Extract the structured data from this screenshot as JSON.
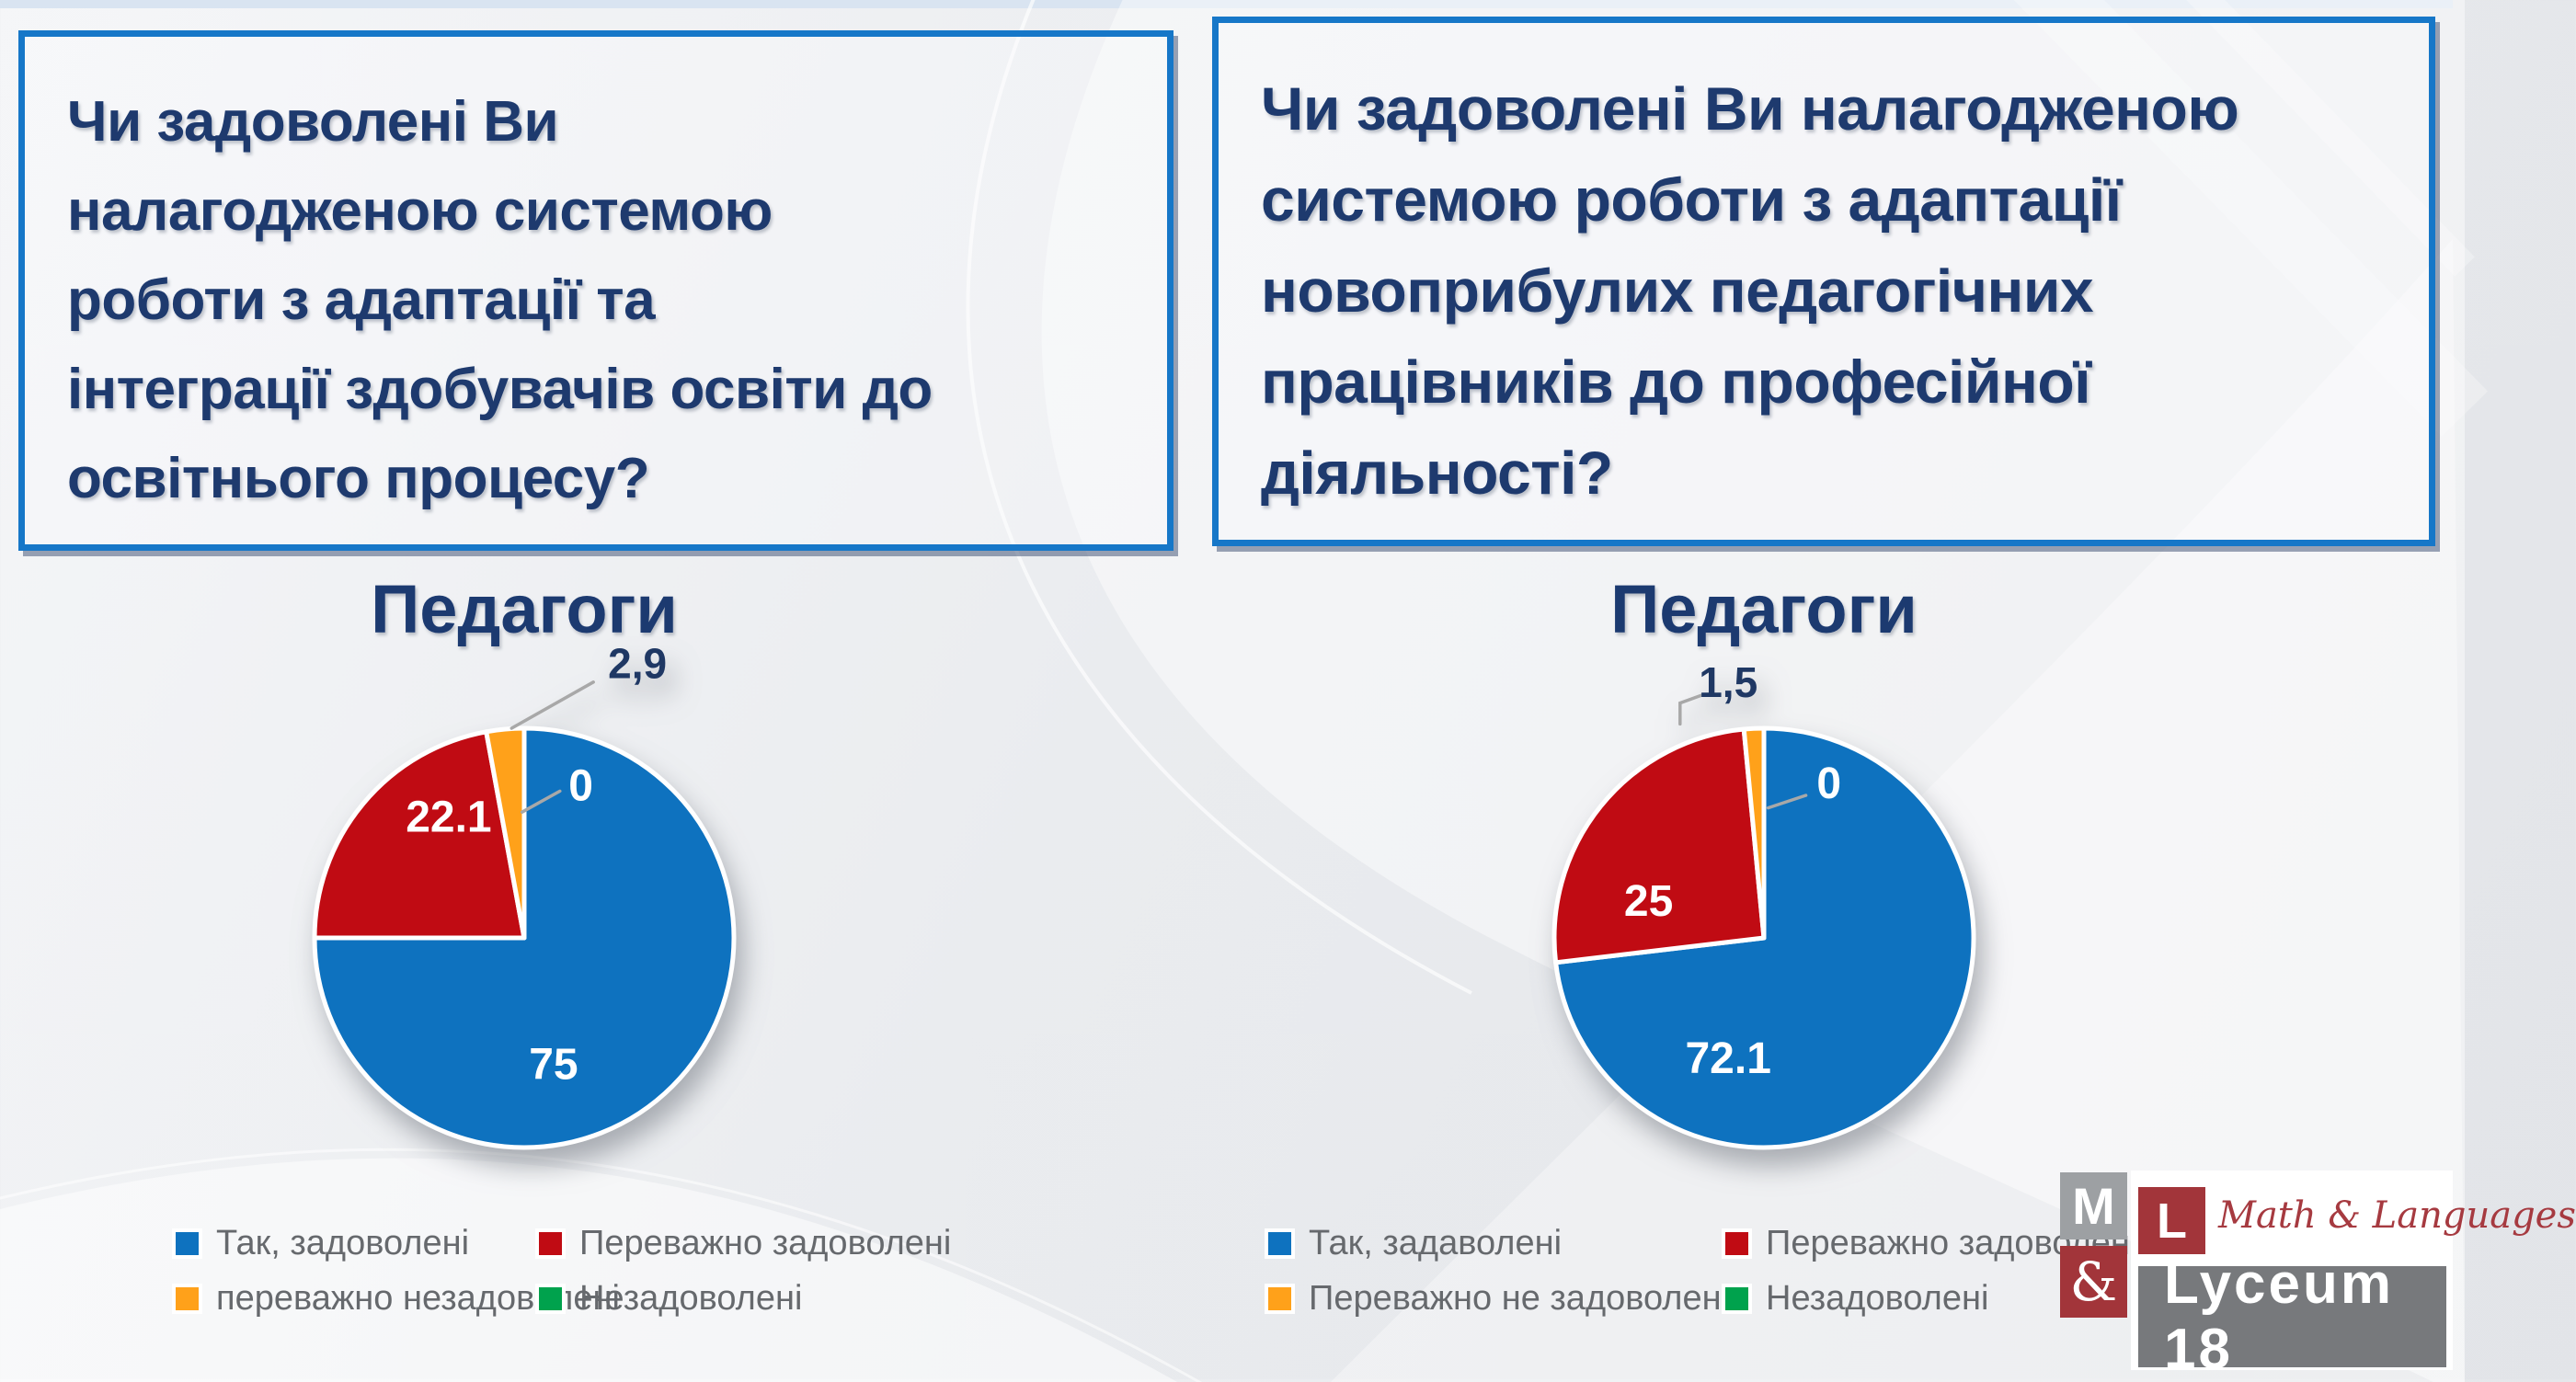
{
  "questions": [
    {
      "text": "Чи задоволені Ви\nналагодженою системою\nроботи з адаптації  та\nінтеграції здобувачів освіти до\nосвітнього процесу?"
    },
    {
      "text": "Чи задоволені Ви налагодженою\nсистемою роботи з адаптації\nновоприбулих педагогічних\nпрацівників до професійної\nдіяльності?"
    }
  ],
  "colors": {
    "box_border": "#1677c8",
    "heading_navy": "#1e3a6e",
    "legend_text": "#66696d",
    "leader_line": "#a8a8a8",
    "series_blue": "#0e72bf",
    "series_red": "#c00b13",
    "series_orange": "#ffa11a",
    "series_green": "#00a24d"
  },
  "chart_data": [
    {
      "type": "pie",
      "title": "Педагоги",
      "legend_position": "bottom",
      "slices": [
        {
          "label": "Так, задоволені",
          "value": 75,
          "display": "75",
          "color": "#0e72bf",
          "text_color": "#ffffff",
          "pos": [
            0.14,
            0.6
          ]
        },
        {
          "label": "Переважно задоволені",
          "value": 22.1,
          "display": "22.1",
          "color": "#c00b13",
          "text_color": "#ffffff",
          "pos": [
            -0.36,
            -0.58
          ]
        },
        {
          "label": "переважно незадоволені",
          "value": 2.9,
          "display": "2,9",
          "color": "#ffa11a",
          "text_color": "#1f3864",
          "pos": [
            0.54,
            -1.31
          ],
          "leader": [
            [
              -0.06,
              -1.0
            ],
            [
              0.33,
              -1.22
            ]
          ]
        },
        {
          "label": "Незадоволені",
          "value": 0,
          "display": "0",
          "color": "#00a24d",
          "text_color": "#ffffff",
          "pos": [
            0.27,
            -0.73
          ],
          "leader": [
            [
              -0.01,
              -0.6
            ],
            [
              0.17,
              -0.7
            ]
          ]
        }
      ]
    },
    {
      "type": "pie",
      "title": "Педагоги",
      "legend_position": "bottom",
      "slices": [
        {
          "label": "Так, задаволені",
          "value": 72.1,
          "display": "72.1",
          "color": "#0e72bf",
          "text_color": "#ffffff",
          "pos": [
            -0.17,
            0.57
          ]
        },
        {
          "label": "Переважно задоволені",
          "value": 25,
          "display": "25",
          "color": "#c00b13",
          "text_color": "#ffffff",
          "pos": [
            -0.55,
            -0.18
          ]
        },
        {
          "label": "Переважно не задоволені",
          "value": 1.5,
          "display": "1,5",
          "color": "#ffa11a",
          "text_color": "#1f3864",
          "pos": [
            -0.17,
            -1.22
          ],
          "leader": [
            [
              -0.4,
              -1.02
            ],
            [
              -0.4,
              -1.12
            ],
            [
              -0.29,
              -1.16
            ]
          ]
        },
        {
          "label": "Незадоволені",
          "value": 0,
          "display": "0",
          "color": "#00a24d",
          "text_color": "#ffffff",
          "pos": [
            0.31,
            -0.74
          ],
          "leader": [
            [
              0.02,
              -0.62
            ],
            [
              0.2,
              -0.68
            ]
          ]
        }
      ]
    }
  ],
  "logo": {
    "m": "M",
    "amp": "&",
    "l": "L",
    "script": "Math & Languages",
    "banner": "Lyceum 18"
  }
}
